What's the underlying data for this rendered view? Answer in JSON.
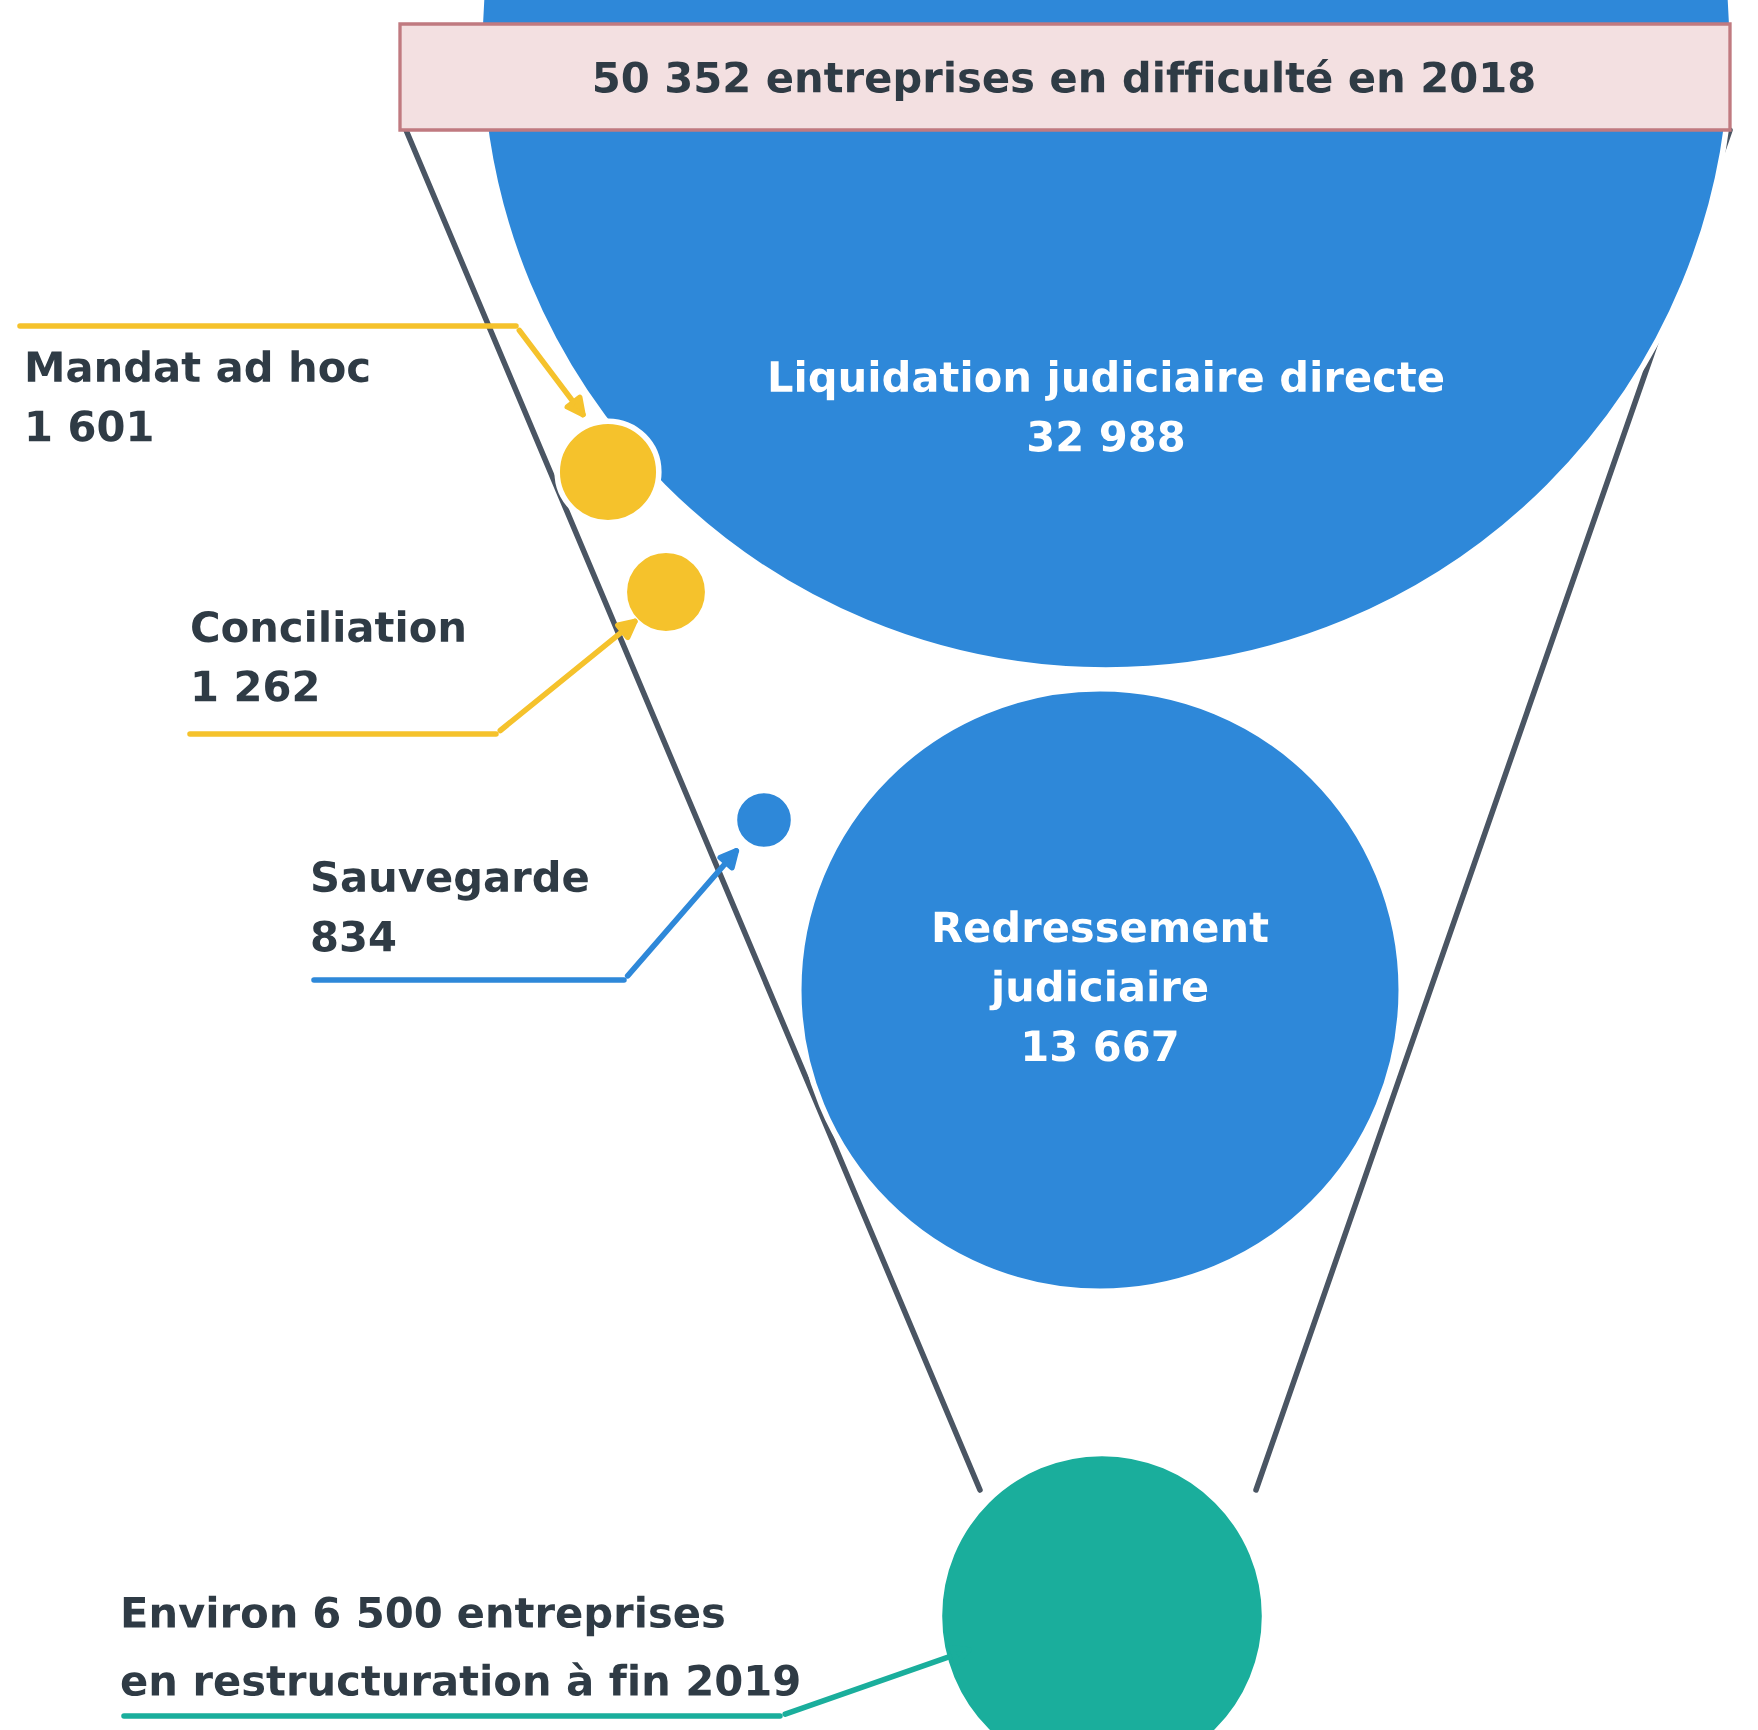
{
  "chart_data": {
    "type": "other",
    "title": "50 352 entreprises en difficulté en 2018",
    "categories": [
      "Liquidation judiciaire directe",
      "Mandat ad hoc",
      "Conciliation",
      "Sauvegarde",
      "Redressement\njudiciaire",
      "entreprises\nen restructuration à fin 2019"
    ],
    "values": [
      32988,
      1601,
      1262,
      834,
      13667,
      6500
    ],
    "value_labels": [
      "32 988",
      "1 601",
      "1 262",
      "834",
      "13 667",
      "6 500"
    ],
    "annotations": [
      "Environ"
    ],
    "colors": [
      "#2e88d9",
      "#f5c22c",
      "#f5c22c",
      "#2e88d9",
      "#2e88d9",
      "#1aae9c"
    ]
  }
}
